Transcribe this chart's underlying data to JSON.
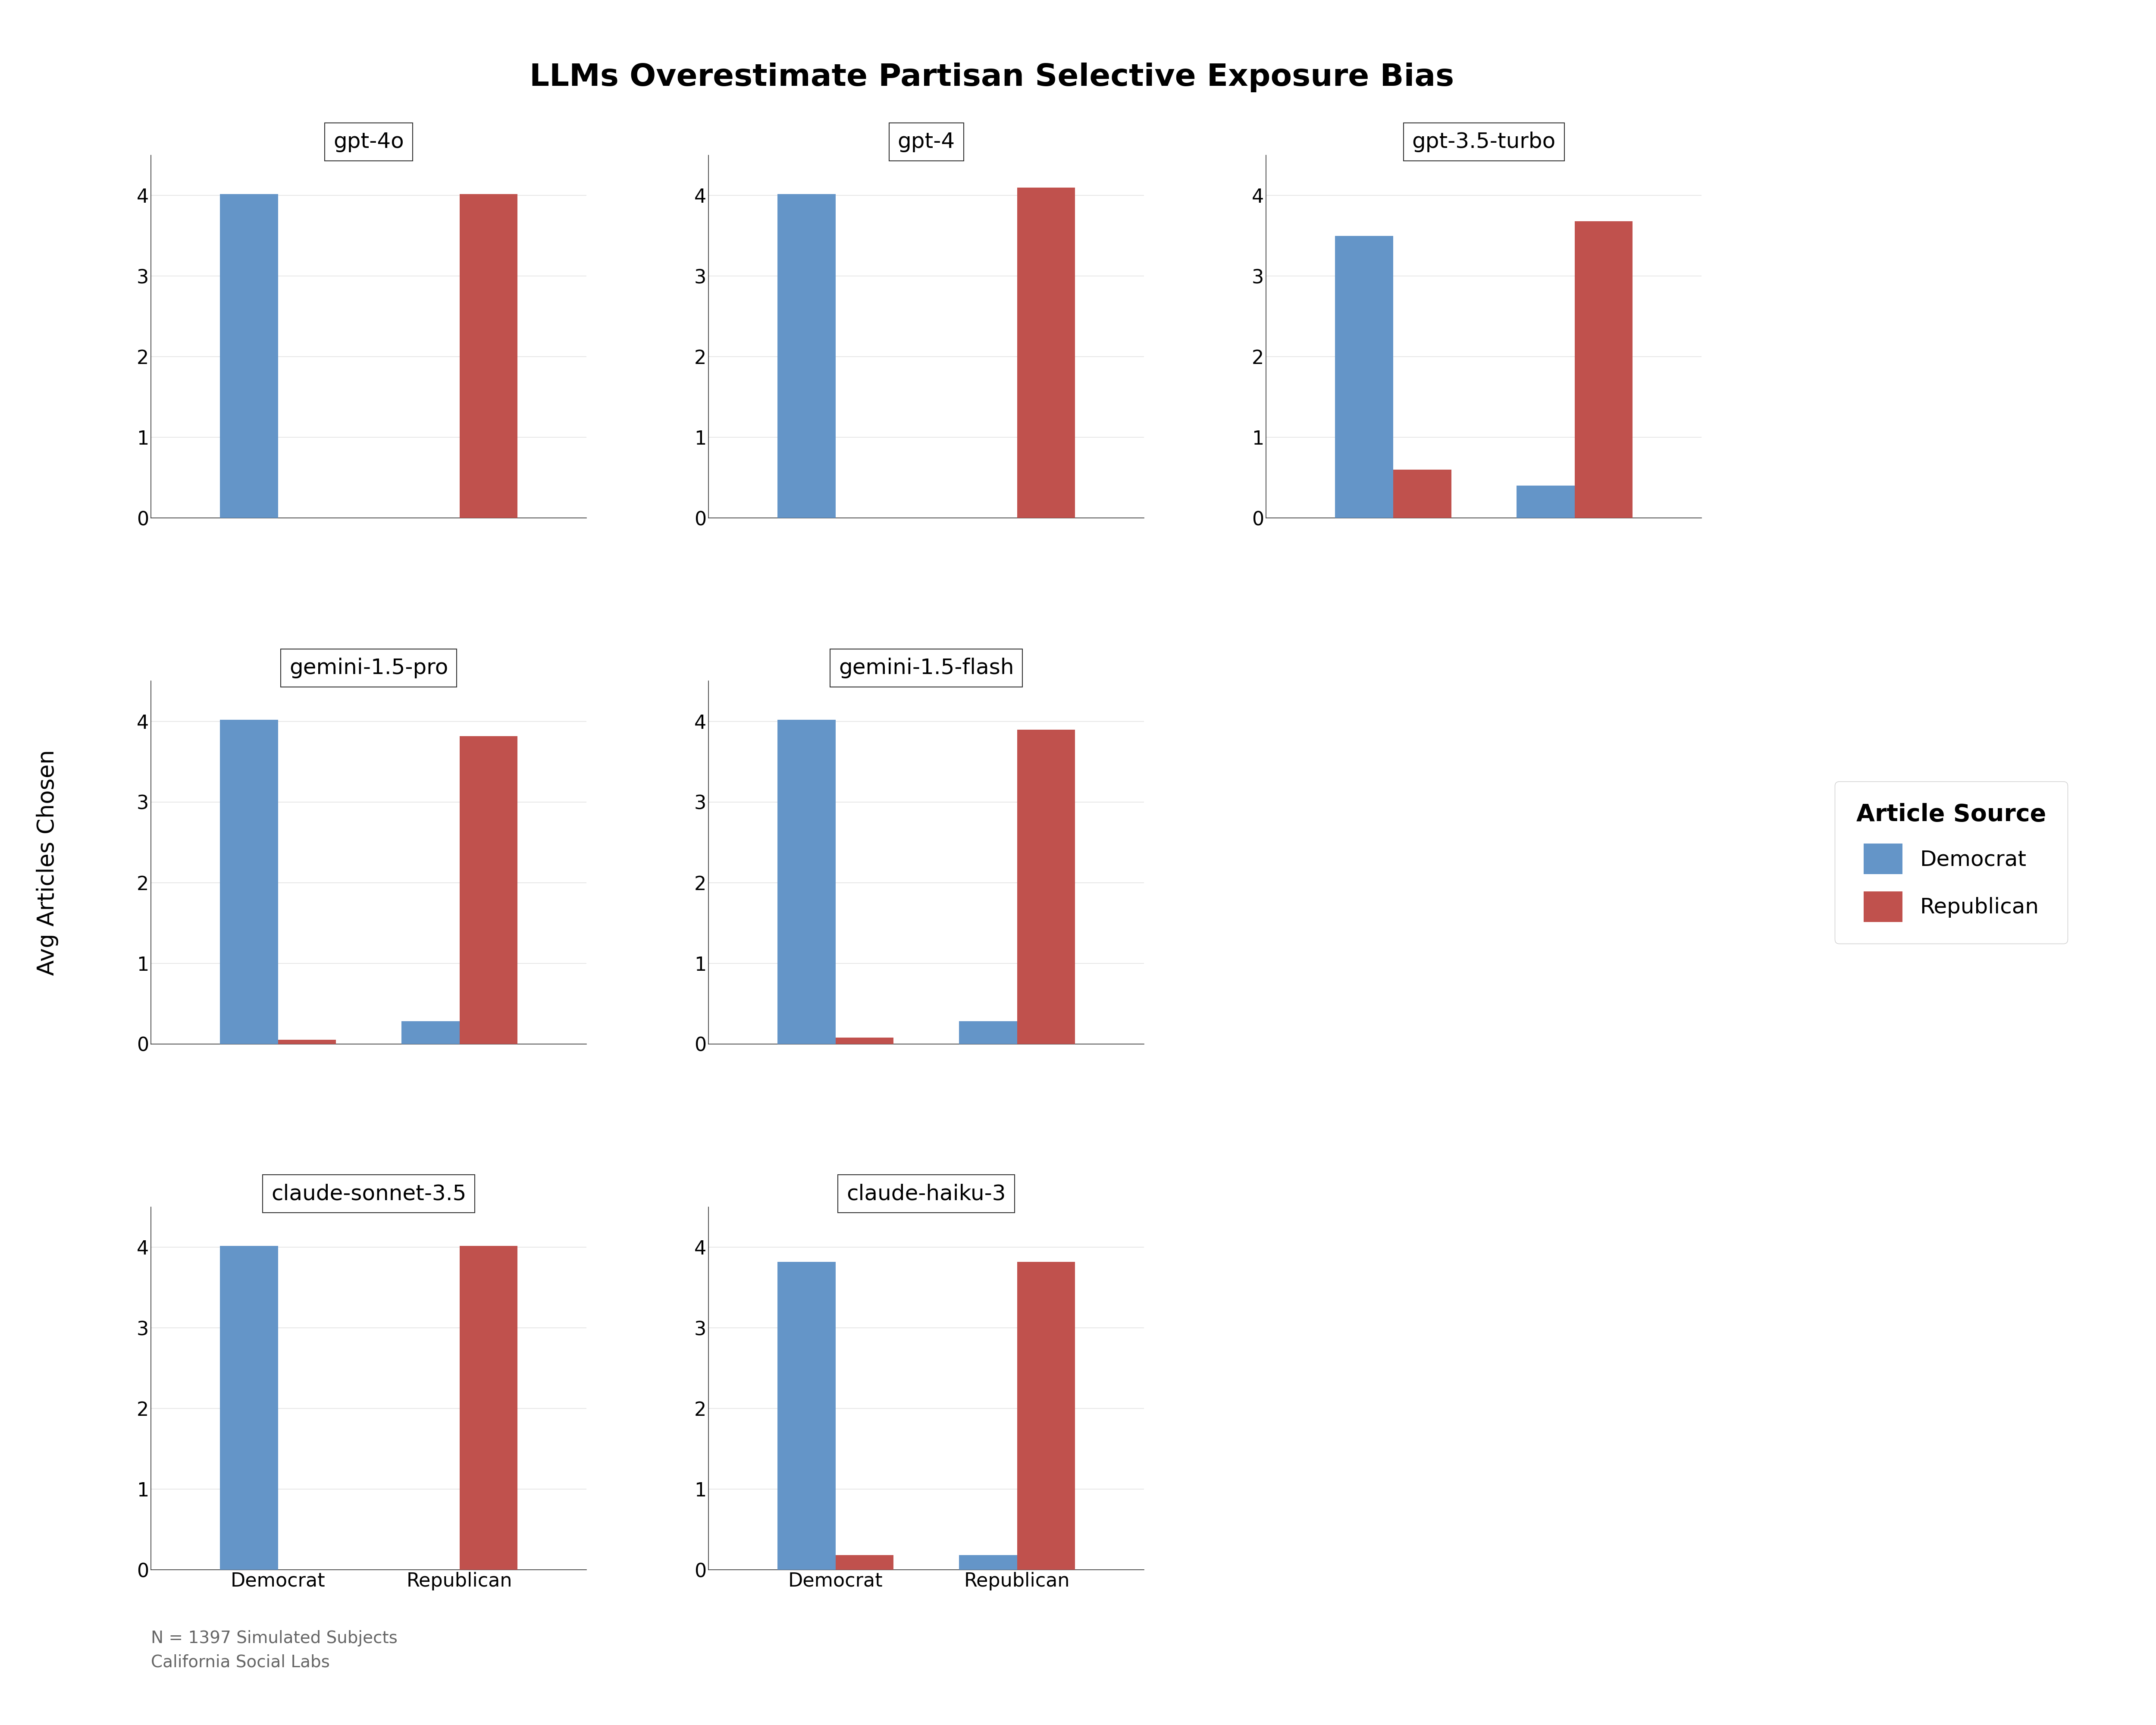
{
  "title": "LLMs Overestimate Partisan Selective Exposure Bias",
  "ylabel": "Avg Articles Chosen",
  "legend_title": "Article Source",
  "legend_entries": [
    "Democrat",
    "Republican"
  ],
  "democrat_color": "#6495C8",
  "republican_color": "#C0514D",
  "background_color": "#FFFFFF",
  "panel_bg": "#FFFFFF",
  "grid_color": "#E8E8E8",
  "note": "N = 1397 Simulated Subjects\nCalifornia Social Labs",
  "models": [
    {
      "name": "gpt-4o",
      "grid_row": 0,
      "grid_col": 0,
      "dem_dem": 4.02,
      "dem_rep": 0.0,
      "rep_dem": 0.0,
      "rep_rep": 4.02
    },
    {
      "name": "gpt-4",
      "grid_row": 0,
      "grid_col": 1,
      "dem_dem": 4.02,
      "dem_rep": 0.0,
      "rep_dem": 0.0,
      "rep_rep": 4.1
    },
    {
      "name": "gpt-3.5-turbo",
      "grid_row": 0,
      "grid_col": 2,
      "dem_dem": 3.5,
      "dem_rep": 0.6,
      "rep_dem": 0.4,
      "rep_rep": 3.68
    },
    {
      "name": "gemini-1.5-pro",
      "grid_row": 1,
      "grid_col": 0,
      "dem_dem": 4.02,
      "dem_rep": 0.05,
      "rep_dem": 0.28,
      "rep_rep": 3.82
    },
    {
      "name": "gemini-1.5-flash",
      "grid_row": 1,
      "grid_col": 1,
      "dem_dem": 4.02,
      "dem_rep": 0.08,
      "rep_dem": 0.28,
      "rep_rep": 3.9
    },
    {
      "name": "claude-sonnet-3.5",
      "grid_row": 2,
      "grid_col": 0,
      "dem_dem": 4.02,
      "dem_rep": 0.0,
      "rep_dem": 0.0,
      "rep_rep": 4.02
    },
    {
      "name": "claude-haiku-3",
      "grid_row": 2,
      "grid_col": 1,
      "dem_dem": 3.82,
      "dem_rep": 0.18,
      "rep_dem": 0.18,
      "rep_rep": 3.82
    }
  ],
  "ylim": [
    0,
    4.5
  ],
  "yticks": [
    0,
    1,
    2,
    3,
    4
  ],
  "bar_width": 0.32,
  "title_fontsize": 52,
  "label_fontsize": 38,
  "tick_fontsize": 32,
  "panel_title_fontsize": 36,
  "legend_fontsize": 36,
  "legend_title_fontsize": 40,
  "note_fontsize": 28,
  "spine_color": "#333333"
}
